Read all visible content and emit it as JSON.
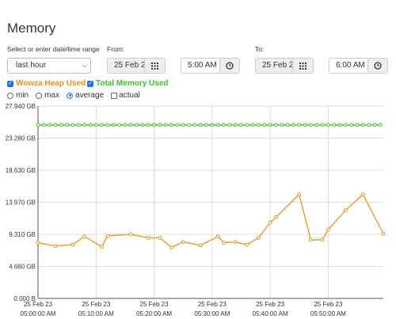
{
  "title": "Memory",
  "range_label": "Select or enter date/time range",
  "range_select": "last hour",
  "from_label": "From:",
  "from_date": "25 Feb 2",
  "from_time": "5:00 AM",
  "to_label": "To:",
  "to_date": "25 Feb 2",
  "to_time": "6:00 AM",
  "series_toggles": {
    "heap": {
      "label": "Wowza Heap Used",
      "checked": true,
      "color": "#f29111"
    },
    "total": {
      "label": "Total Memory Used",
      "checked": true,
      "color": "#3fc21c"
    }
  },
  "aggregation": {
    "options": [
      "min",
      "max",
      "average"
    ],
    "selected": "average",
    "actual_label": "actual"
  },
  "chart_data": {
    "type": "line",
    "yticks": [
      "27.940 GB",
      "23.280 GB",
      "18.630 GB",
      "13.970 GB",
      "9.310 GB",
      "4.660 GB",
      "0.000 B"
    ],
    "ylim": [
      0,
      27.94
    ],
    "xticks": [
      {
        "date": "25 Feb 23",
        "time": "05:00:00 AM"
      },
      {
        "date": "25 Feb 23",
        "time": "05:10:00 AM"
      },
      {
        "date": "25 Feb 23",
        "time": "05:20:00 AM"
      },
      {
        "date": "25 Feb 23",
        "time": "05:30:00 AM"
      },
      {
        "date": "25 Feb 23",
        "time": "05:40:00 AM"
      },
      {
        "date": "25 Feb 23",
        "time": "05:50:00 AM"
      }
    ],
    "xlim_minutes": [
      0,
      59.5
    ],
    "series": [
      {
        "name": "Wowza Heap Used",
        "color": "#f29111",
        "x": [
          0,
          3,
          6,
          8,
          11,
          12,
          16,
          19,
          21,
          23,
          25,
          28,
          31,
          32,
          34,
          36,
          38,
          40,
          41,
          45,
          47,
          49,
          50,
          53,
          56,
          59.5
        ],
        "y": [
          8.1,
          7.6,
          7.8,
          9.0,
          7.5,
          9.1,
          9.3,
          8.8,
          8.8,
          7.4,
          8.2,
          7.7,
          9.0,
          8.1,
          8.2,
          7.8,
          8.8,
          11.0,
          11.8,
          15.1,
          8.5,
          8.5,
          10.0,
          12.8,
          15.1,
          9.4
        ]
      },
      {
        "name": "Total Memory Used",
        "color": "#3fc21c",
        "x_start": 0,
        "x_step": 1,
        "count": 60,
        "value": 25.2
      }
    ]
  }
}
